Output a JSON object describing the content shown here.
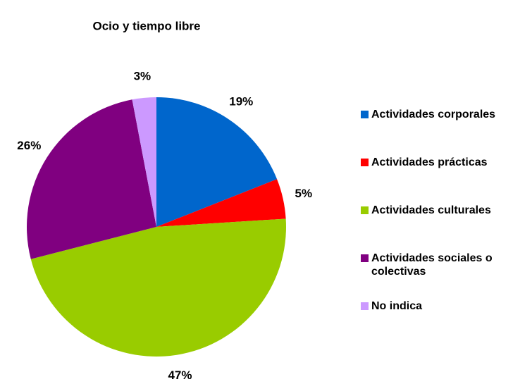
{
  "chart_data": {
    "type": "pie",
    "title": "Ocio y tiempo libre",
    "categories": [
      "Actividades corporales",
      "Actividades prácticas",
      "Actividades culturales",
      "Actividades sociales o colectivas",
      "No indica"
    ],
    "values": [
      19,
      5,
      47,
      26,
      3
    ],
    "value_labels": [
      "19%",
      "5%",
      "47%",
      "26%",
      "3%"
    ],
    "colors": [
      "#0066cc",
      "#ff0000",
      "#99cc00",
      "#800080",
      "#cc99ff"
    ],
    "legend": "right"
  }
}
